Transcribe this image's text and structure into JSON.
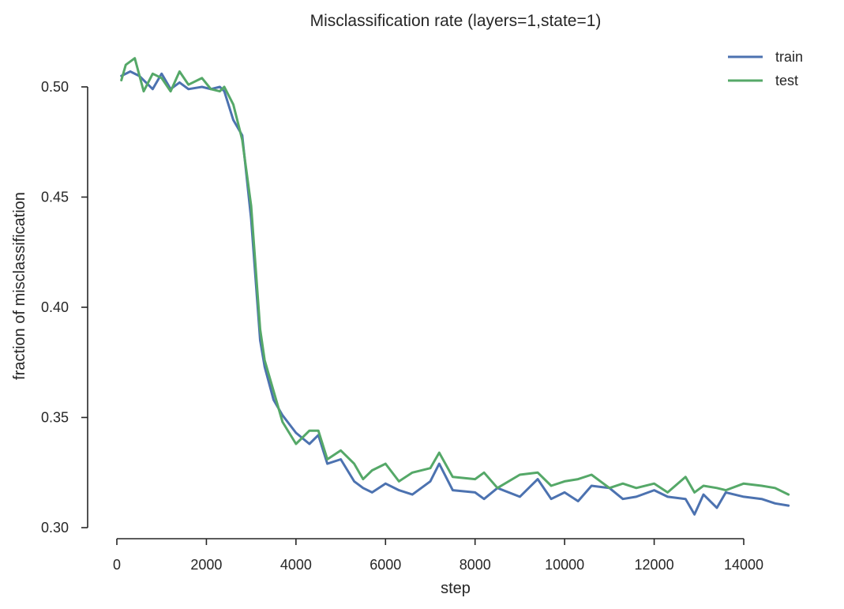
{
  "chart_data": {
    "type": "line",
    "title": "Misclassification rate (layers=1,state=1)",
    "xlabel": "step",
    "ylabel": "fraction of misclassification",
    "xlim": [
      0,
      14000
    ],
    "ylim": [
      0.3,
      0.5
    ],
    "xticks": [
      0,
      2000,
      4000,
      6000,
      8000,
      10000,
      12000,
      14000
    ],
    "yticks": [
      0.3,
      0.35,
      0.4,
      0.45,
      0.5
    ],
    "xtick_labels": [
      "0",
      "2000",
      "4000",
      "6000",
      "8000",
      "10000",
      "12000",
      "14000"
    ],
    "ytick_labels": [
      "0.30",
      "0.35",
      "0.40",
      "0.45",
      "0.50"
    ],
    "grid": false,
    "legend_position": "top-right",
    "series": [
      {
        "name": "train",
        "color": "#4c72b0",
        "x": [
          100,
          300,
          500,
          800,
          1000,
          1200,
          1400,
          1600,
          1900,
          2100,
          2300,
          2400,
          2600,
          2800,
          3000,
          3200,
          3300,
          3500,
          3700,
          4000,
          4300,
          4500,
          4700,
          5000,
          5300,
          5500,
          5700,
          6000,
          6300,
          6600,
          7000,
          7200,
          7500,
          8000,
          8200,
          8500,
          9000,
          9400,
          9700,
          10000,
          10300,
          10600,
          11000,
          11300,
          11600,
          12000,
          12300,
          12700,
          12900,
          13100,
          13400,
          13600,
          14000,
          14400,
          14700,
          15000
        ],
        "y": [
          0.505,
          0.507,
          0.505,
          0.499,
          0.506,
          0.499,
          0.502,
          0.499,
          0.5,
          0.499,
          0.5,
          0.498,
          0.485,
          0.478,
          0.44,
          0.385,
          0.373,
          0.358,
          0.351,
          0.343,
          0.338,
          0.342,
          0.329,
          0.331,
          0.321,
          0.318,
          0.316,
          0.32,
          0.317,
          0.315,
          0.321,
          0.329,
          0.317,
          0.316,
          0.313,
          0.318,
          0.314,
          0.322,
          0.313,
          0.316,
          0.312,
          0.319,
          0.318,
          0.313,
          0.314,
          0.317,
          0.314,
          0.313,
          0.306,
          0.315,
          0.309,
          0.316,
          0.314,
          0.313,
          0.311,
          0.31
        ]
      },
      {
        "name": "test",
        "color": "#55a868",
        "x": [
          100,
          200,
          400,
          600,
          800,
          1000,
          1200,
          1400,
          1600,
          1900,
          2100,
          2300,
          2400,
          2600,
          2800,
          3000,
          3200,
          3300,
          3500,
          3700,
          4000,
          4300,
          4500,
          4700,
          5000,
          5300,
          5500,
          5700,
          6000,
          6300,
          6600,
          7000,
          7200,
          7500,
          8000,
          8200,
          8500,
          9000,
          9400,
          9700,
          10000,
          10300,
          10600,
          11000,
          11300,
          11600,
          12000,
          12300,
          12700,
          12900,
          13100,
          13400,
          13600,
          14000,
          14400,
          14700,
          15000
        ],
        "y": [
          0.503,
          0.51,
          0.513,
          0.498,
          0.506,
          0.504,
          0.498,
          0.507,
          0.501,
          0.504,
          0.499,
          0.498,
          0.5,
          0.492,
          0.476,
          0.446,
          0.39,
          0.376,
          0.362,
          0.348,
          0.338,
          0.344,
          0.344,
          0.331,
          0.335,
          0.329,
          0.322,
          0.326,
          0.329,
          0.321,
          0.325,
          0.327,
          0.334,
          0.323,
          0.322,
          0.325,
          0.318,
          0.324,
          0.325,
          0.319,
          0.321,
          0.322,
          0.324,
          0.318,
          0.32,
          0.318,
          0.32,
          0.316,
          0.323,
          0.316,
          0.319,
          0.318,
          0.317,
          0.32,
          0.319,
          0.318,
          0.315
        ]
      }
    ]
  }
}
